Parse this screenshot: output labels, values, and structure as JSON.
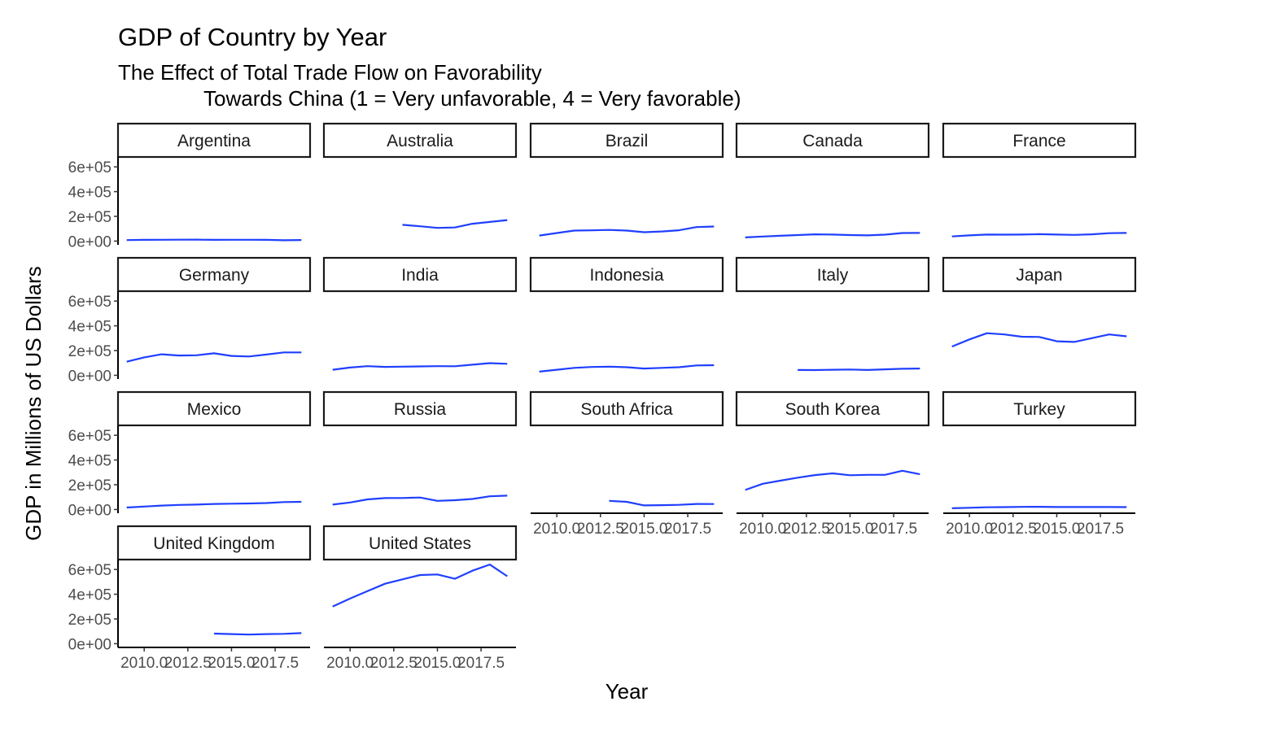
{
  "chart_data": {
    "type": "line",
    "title": "GDP of Country by Year",
    "subtitle_lines": [
      "The Effect of Total Trade Flow on Favorability",
      "Towards China (1 = Very unfavorable, 4 = Very favorable)"
    ],
    "xlabel": "Year",
    "ylabel": "GDP in Millions of US Dollars",
    "xlim": [
      2008.5,
      2019.5
    ],
    "ylim": [
      -30000,
      680000
    ],
    "x_ticks": [
      2010,
      2012.5,
      2015,
      2017.5
    ],
    "x_tick_labels": [
      "2010.0",
      "2012.5",
      "2015.0",
      "2017.5"
    ],
    "y_ticks": [
      0,
      200000,
      400000,
      600000
    ],
    "y_tick_labels": [
      "0e+00",
      "2e+05",
      "4e+05",
      "6e+05"
    ],
    "line_color": "#1f3fff",
    "facet_columns": 5,
    "grid": false,
    "legend": "none",
    "panels": [
      {
        "name": "Argentina",
        "x": [
          2009,
          2010,
          2011,
          2012,
          2013,
          2014,
          2015,
          2016,
          2017,
          2018,
          2019
        ],
        "y": [
          8000,
          10000,
          11000,
          11500,
          12000,
          10000,
          11000,
          11000,
          10000,
          7000,
          9000
        ]
      },
      {
        "name": "Australia",
        "x": [
          2013,
          2014,
          2015,
          2016,
          2017,
          2018,
          2019
        ],
        "y": [
          132000,
          120000,
          107000,
          110000,
          140000,
          155000,
          170000
        ]
      },
      {
        "name": "Brazil",
        "x": [
          2009,
          2010,
          2011,
          2012,
          2013,
          2014,
          2015,
          2016,
          2017,
          2018,
          2019
        ],
        "y": [
          45000,
          65000,
          85000,
          87000,
          90000,
          85000,
          72000,
          78000,
          88000,
          113000,
          118000
        ]
      },
      {
        "name": "Canada",
        "x": [
          2009,
          2010,
          2011,
          2012,
          2013,
          2014,
          2015,
          2016,
          2017,
          2018,
          2019
        ],
        "y": [
          30000,
          37000,
          43000,
          49000,
          55000,
          53000,
          49000,
          46000,
          52000,
          65000,
          66000
        ]
      },
      {
        "name": "France",
        "x": [
          2009,
          2010,
          2011,
          2012,
          2013,
          2014,
          2015,
          2016,
          2017,
          2018,
          2019
        ],
        "y": [
          38000,
          46000,
          53000,
          52000,
          53000,
          56000,
          53000,
          50000,
          55000,
          64000,
          66000
        ]
      },
      {
        "name": "Germany",
        "x": [
          2009,
          2010,
          2011,
          2012,
          2013,
          2014,
          2015,
          2016,
          2017,
          2018,
          2019
        ],
        "y": [
          110000,
          145000,
          170000,
          160000,
          162000,
          178000,
          157000,
          152000,
          168000,
          185000,
          185000
        ]
      },
      {
        "name": "India",
        "x": [
          2009,
          2010,
          2011,
          2012,
          2013,
          2014,
          2015,
          2016,
          2017,
          2018,
          2019
        ],
        "y": [
          45000,
          63000,
          74000,
          68000,
          70000,
          72000,
          74000,
          73000,
          86000,
          98000,
          93000
        ]
      },
      {
        "name": "Indonesia",
        "x": [
          2009,
          2010,
          2011,
          2012,
          2013,
          2014,
          2015,
          2016,
          2017,
          2018,
          2019
        ],
        "y": [
          30000,
          45000,
          60000,
          67000,
          70000,
          65000,
          55000,
          60000,
          65000,
          80000,
          82000
        ]
      },
      {
        "name": "Italy",
        "x": [
          2012,
          2013,
          2014,
          2015,
          2016,
          2017,
          2018,
          2019
        ],
        "y": [
          43000,
          42000,
          45000,
          47000,
          43000,
          48000,
          53000,
          55000
        ]
      },
      {
        "name": "Japan",
        "x": [
          2009,
          2010,
          2011,
          2012,
          2013,
          2014,
          2015,
          2016,
          2017,
          2018,
          2019
        ],
        "y": [
          232000,
          290000,
          340000,
          330000,
          312000,
          310000,
          275000,
          270000,
          300000,
          330000,
          315000
        ]
      },
      {
        "name": "Mexico",
        "x": [
          2009,
          2010,
          2011,
          2012,
          2013,
          2014,
          2015,
          2016,
          2017,
          2018,
          2019
        ],
        "y": [
          16000,
          24000,
          32000,
          37000,
          40000,
          45000,
          47000,
          49000,
          52000,
          60000,
          62000
        ]
      },
      {
        "name": "Russia",
        "x": [
          2009,
          2010,
          2011,
          2012,
          2013,
          2014,
          2015,
          2016,
          2017,
          2018,
          2019
        ],
        "y": [
          40000,
          57000,
          82000,
          92000,
          93000,
          97000,
          70000,
          75000,
          85000,
          107000,
          112000
        ]
      },
      {
        "name": "South Africa",
        "x": [
          2013,
          2014,
          2015,
          2016,
          2017,
          2018,
          2019
        ],
        "y": [
          70000,
          62000,
          33000,
          35000,
          38000,
          45000,
          44000
        ]
      },
      {
        "name": "South Korea",
        "x": [
          2009,
          2010,
          2011,
          2012,
          2013,
          2014,
          2015,
          2016,
          2017,
          2018,
          2019
        ],
        "y": [
          158000,
          208000,
          233000,
          257000,
          278000,
          292000,
          277000,
          280000,
          280000,
          313000,
          285000
        ]
      },
      {
        "name": "Turkey",
        "x": [
          2009,
          2010,
          2011,
          2012,
          2013,
          2014,
          2015,
          2016,
          2017,
          2018,
          2019
        ],
        "y": [
          10000,
          14000,
          18000,
          19000,
          21000,
          22000,
          20000,
          20000,
          20000,
          20000,
          19000
        ]
      },
      {
        "name": "United Kingdom",
        "x": [
          2014,
          2015,
          2016,
          2017,
          2018,
          2019
        ],
        "y": [
          82000,
          78000,
          74000,
          78000,
          80000,
          86000
        ]
      },
      {
        "name": "United States",
        "x": [
          2009,
          2010,
          2011,
          2012,
          2013,
          2014,
          2015,
          2016,
          2017,
          2018,
          2019
        ],
        "y": [
          300000,
          365000,
          425000,
          485000,
          520000,
          555000,
          560000,
          525000,
          590000,
          640000,
          545000
        ]
      }
    ]
  }
}
